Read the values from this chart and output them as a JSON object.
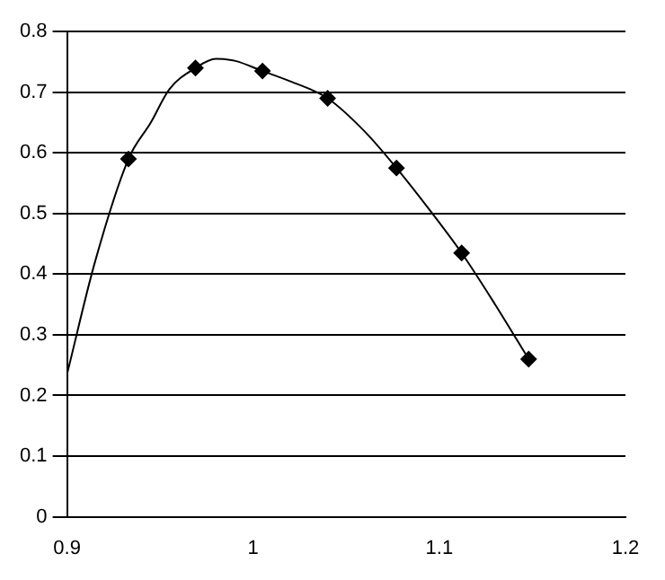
{
  "chart_data": {
    "type": "line",
    "xlim": [
      0.9,
      1.2
    ],
    "xticks": [
      0.9,
      1,
      1.1,
      1.2
    ],
    "ylim": [
      0,
      0.8
    ],
    "yticks": [
      0,
      0.1,
      0.2,
      0.3,
      0.4,
      0.5,
      0.6,
      0.7,
      0.8
    ],
    "grid": "y",
    "legend": false,
    "series": [
      {
        "color": "#000000",
        "marker": "none",
        "x": [
          0.9,
          0.915,
          0.933,
          0.945,
          0.955,
          0.969,
          0.98,
          0.99,
          1.005,
          1.02,
          1.04,
          1.06,
          1.077,
          1.095,
          1.112,
          1.13,
          1.148
        ],
        "values": [
          0.235,
          0.42,
          0.59,
          0.65,
          0.705,
          0.74,
          0.755,
          0.752,
          0.735,
          0.718,
          0.69,
          0.635,
          0.575,
          0.505,
          0.435,
          0.35,
          0.26
        ]
      },
      {
        "type": "scatter",
        "color": "#000000",
        "marker": "diamond",
        "x": [
          0.933,
          0.969,
          1.005,
          1.04,
          1.077,
          1.112,
          1.148
        ],
        "values": [
          0.59,
          0.74,
          0.735,
          0.69,
          0.575,
          0.435,
          0.26
        ]
      }
    ]
  }
}
